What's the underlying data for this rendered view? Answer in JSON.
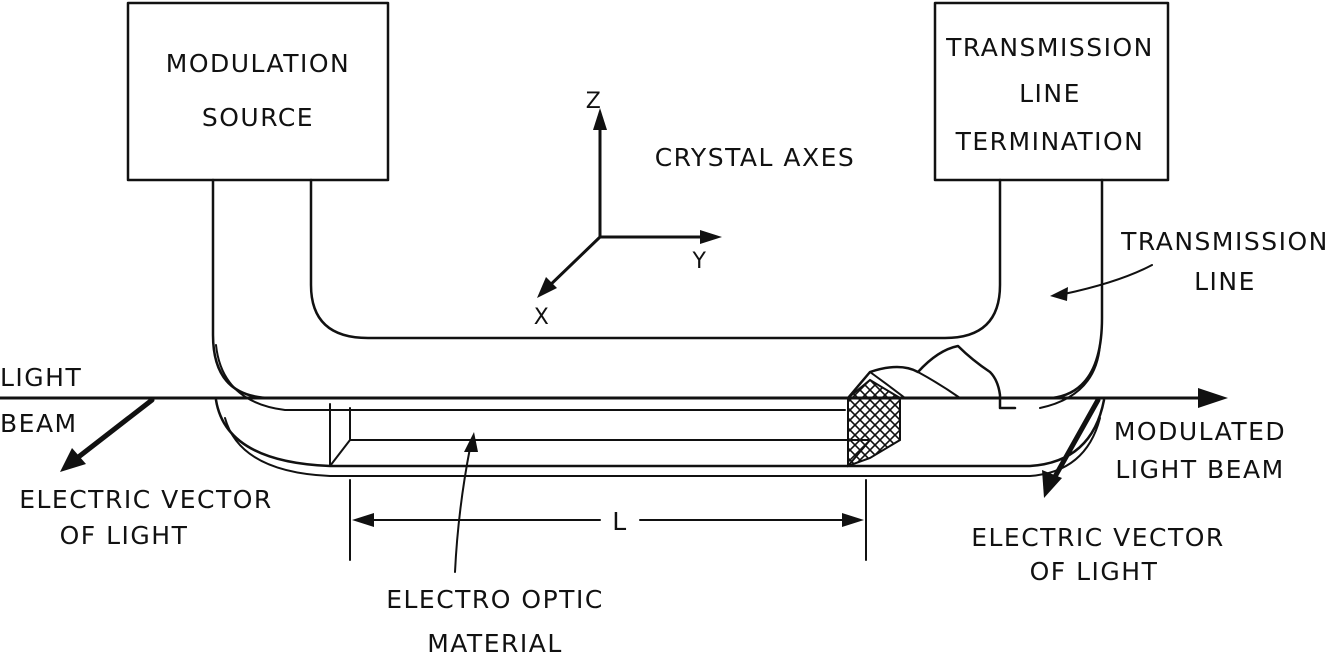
{
  "modulation_source": {
    "line1": "MODULATION",
    "line2": "SOURCE"
  },
  "termination": {
    "line1": "TRANSMISSION",
    "line2": "LINE",
    "line3": "TERMINATION"
  },
  "axes": {
    "title": "CRYSTAL AXES",
    "z": "Z",
    "y": "Y",
    "x": "X"
  },
  "transmission_line": {
    "line1": "TRANSMISSION",
    "line2": "LINE"
  },
  "light_beam": {
    "line1": "LIGHT",
    "line2": "BEAM"
  },
  "modulated_beam": {
    "line1": "MODULATED",
    "line2": "LIGHT  BEAM"
  },
  "vector_left": {
    "line1": "ELECTRIC VECTOR",
    "line2": "OF LIGHT"
  },
  "vector_right": {
    "line1": "ELECTRIC VECTOR",
    "line2": "OF LIGHT"
  },
  "material": {
    "line1": "ELECTRO OPTIC",
    "line2": "MATERIAL"
  },
  "length": {
    "label": "L"
  }
}
